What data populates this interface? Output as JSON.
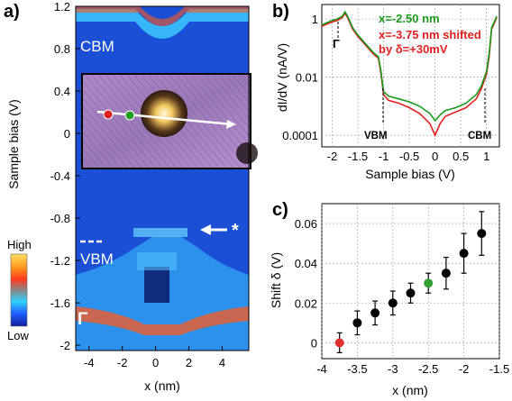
{
  "chart_data": [
    {
      "panel": "a)",
      "type": "heatmap",
      "xlabel": "x (nm)",
      "ylabel": "Sample bias (V)",
      "x_ticks": [
        "-4",
        "-2",
        "0",
        "2",
        "4"
      ],
      "y_ticks": [
        "1.2",
        "0.8",
        "0.4",
        "0",
        "-0.4",
        "-0.8",
        "-1.2",
        "-1.6",
        "-2"
      ],
      "xlim": [
        -4.8,
        5.6
      ],
      "ylim": [
        -2.05,
        1.2
      ],
      "annotations": {
        "cbm": "CBM",
        "vbm": "VBM",
        "gamma": "Γ",
        "star": "*"
      },
      "colorbar": {
        "high": "High",
        "low": "Low"
      },
      "colors": {
        "background": "#1a4fd6",
        "cbm_band": "#ff5a1e",
        "vbm_band": "#3cc8ff",
        "gamma_band": "#ff5a1e"
      }
    },
    {
      "panel": "b)",
      "type": "line",
      "xlabel": "Sample bias (V)",
      "ylabel": "dI/dV (nA/V)",
      "x_ticks": [
        "-2",
        "-1.5",
        "-1",
        "-0.5",
        "0",
        "0.5",
        "1"
      ],
      "y_ticks": [
        "1",
        "0.01",
        "0.0001"
      ],
      "xlim": [
        -2.2,
        1.25
      ],
      "ylim_log10": [
        -4.4,
        0.5
      ],
      "log_scale": true,
      "grid": true,
      "annotations": {
        "gamma": "Γ",
        "vbm": "VBM",
        "cbm": "CBM"
      },
      "series": [
        {
          "name": "x=-2.50 nm",
          "color": "#1a9a1a",
          "x": [
            -2.2,
            -2.0,
            -1.9,
            -1.8,
            -1.75,
            -1.7,
            -1.6,
            -1.5,
            -1.4,
            -1.3,
            -1.2,
            -1.1,
            -1.05,
            -1.0,
            -0.9,
            -0.7,
            -0.5,
            -0.3,
            -0.1,
            0.0,
            0.1,
            0.2,
            0.4,
            0.6,
            0.8,
            0.9,
            1.0,
            1.05,
            1.1,
            1.2
          ],
          "log10_y": [
            -0.2,
            -0.05,
            0.0,
            0.1,
            0.25,
            0.1,
            -0.3,
            -0.55,
            -0.75,
            -0.95,
            -1.15,
            -1.3,
            -1.8,
            -2.5,
            -2.65,
            -2.75,
            -2.85,
            -3.0,
            -3.25,
            -3.5,
            -3.3,
            -3.15,
            -3.05,
            -2.9,
            -2.6,
            -2.3,
            -1.8,
            -1.2,
            -0.3,
            0.1
          ]
        },
        {
          "name": "x=-3.75 nm shifted",
          "color": "#e02020",
          "x": [
            -2.2,
            -2.0,
            -1.9,
            -1.8,
            -1.75,
            -1.7,
            -1.6,
            -1.5,
            -1.4,
            -1.3,
            -1.2,
            -1.1,
            -1.05,
            -1.0,
            -0.9,
            -0.7,
            -0.5,
            -0.3,
            -0.1,
            0.0,
            0.1,
            0.2,
            0.4,
            0.6,
            0.8,
            0.9,
            1.0,
            1.05,
            1.1,
            1.2
          ],
          "log10_y": [
            -0.25,
            -0.1,
            -0.05,
            0.05,
            0.2,
            0.05,
            -0.35,
            -0.6,
            -0.8,
            -1.0,
            -1.2,
            -1.35,
            -1.9,
            -2.6,
            -2.8,
            -2.9,
            -3.05,
            -3.25,
            -3.6,
            -4.0,
            -3.6,
            -3.35,
            -3.2,
            -3.05,
            -2.75,
            -2.4,
            -1.9,
            -1.3,
            -0.35,
            0.05
          ]
        }
      ],
      "legend": {
        "line1": "x=-2.50 nm",
        "line2": "x=-3.75 nm shifted",
        "line3": "by δ=+30mV"
      }
    },
    {
      "panel": "c)",
      "type": "scatter",
      "xlabel": "x (nm)",
      "ylabel": "Shift δ (V)",
      "x_ticks": [
        "-4",
        "-3.5",
        "-3",
        "-2.5",
        "-2",
        "-1.5"
      ],
      "y_ticks": [
        "0",
        "0.02",
        "0.04",
        "0.06"
      ],
      "xlim": [
        -4.0,
        -1.5
      ],
      "ylim": [
        -0.008,
        0.07
      ],
      "grid": true,
      "points": [
        {
          "x": -3.75,
          "y": 0.0,
          "err": 0.005,
          "color": "#e03030"
        },
        {
          "x": -3.5,
          "y": 0.01,
          "err": 0.006,
          "color": "#000000"
        },
        {
          "x": -3.25,
          "y": 0.015,
          "err": 0.006,
          "color": "#000000"
        },
        {
          "x": -3.0,
          "y": 0.02,
          "err": 0.006,
          "color": "#000000"
        },
        {
          "x": -2.75,
          "y": 0.025,
          "err": 0.005,
          "color": "#000000"
        },
        {
          "x": -2.5,
          "y": 0.03,
          "err": 0.005,
          "color": "#30a030"
        },
        {
          "x": -2.25,
          "y": 0.035,
          "err": 0.008,
          "color": "#000000"
        },
        {
          "x": -2.0,
          "y": 0.045,
          "err": 0.01,
          "color": "#000000"
        },
        {
          "x": -1.75,
          "y": 0.055,
          "err": 0.011,
          "color": "#000000"
        }
      ]
    }
  ]
}
